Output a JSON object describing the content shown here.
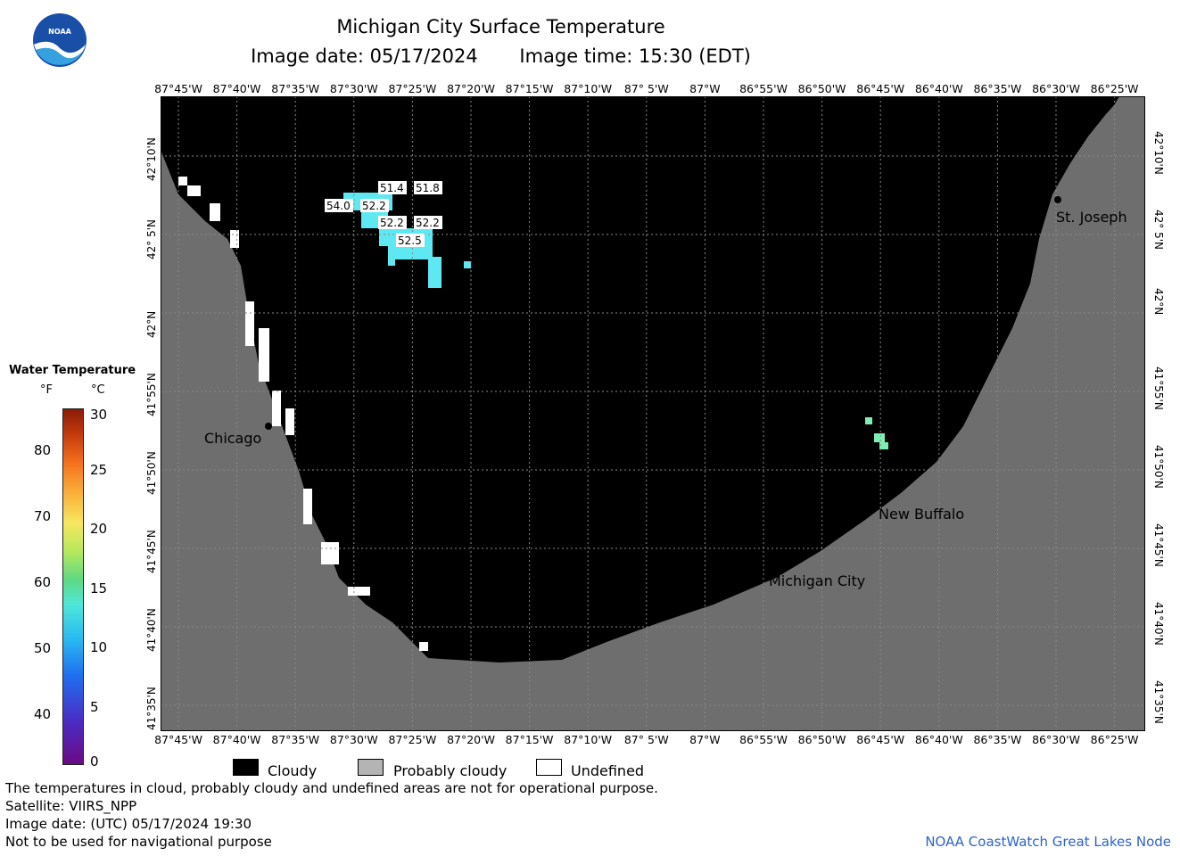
{
  "header": {
    "title": "Michigan City Surface Temperature",
    "image_date": "Image date: 05/17/2024",
    "image_time": "Image time: 15:30 (EDT)"
  },
  "logo": {
    "text": "NOAA"
  },
  "longitude_labels": [
    "87°45'W",
    "87°40'W",
    "87°35'W",
    "87°30'W",
    "87°25'W",
    "87°20'W",
    "87°15'W",
    "87°10'W",
    "87° 5'W",
    "87°W",
    "86°55'W",
    "86°50'W",
    "86°45'W",
    "86°40'W",
    "86°35'W",
    "86°30'W",
    "86°25'W"
  ],
  "latitude_labels": [
    "42°10'N",
    "42° 5'N",
    "42°N",
    "41°55'N",
    "41°50'N",
    "41°45'N",
    "41°40'N",
    "41°35'N"
  ],
  "cities": [
    {
      "name": "St. Joseph"
    },
    {
      "name": "Chicago"
    },
    {
      "name": "New Buffalo"
    },
    {
      "name": "Michigan City"
    }
  ],
  "temperature_labels": [
    "51.4",
    "51.8",
    "54.0",
    "52.2",
    "52.2",
    "52.2",
    "52.5"
  ],
  "legend": {
    "title": "Water Temperature",
    "unit_f": "°F",
    "unit_c": "°C",
    "f_ticks": [
      "80",
      "70",
      "60",
      "50",
      "40"
    ],
    "c_ticks": [
      "30",
      "25",
      "20",
      "15",
      "10",
      "5",
      "0"
    ],
    "items": [
      {
        "label": "Cloudy",
        "color": "#000000"
      },
      {
        "label": "Probably cloudy",
        "color": "#b4b4b4"
      },
      {
        "label": "Undefined",
        "color": "#ffffff"
      }
    ]
  },
  "colors": {
    "land": "#6e6e6e",
    "cloud": "#000000",
    "water_cyan": "#5de8f2",
    "credit": "#2f62c9"
  },
  "footer": {
    "line1": "The temperatures in cloud, probably cloudy and undefined areas are not for operational purpose.",
    "line2": "Satellite: VIIRS_NPP",
    "line3": "Image date: (UTC) 05/17/2024  19:30",
    "line4": "Not to be used for navigational purpose",
    "credit": "NOAA CoastWatch Great Lakes Node"
  }
}
